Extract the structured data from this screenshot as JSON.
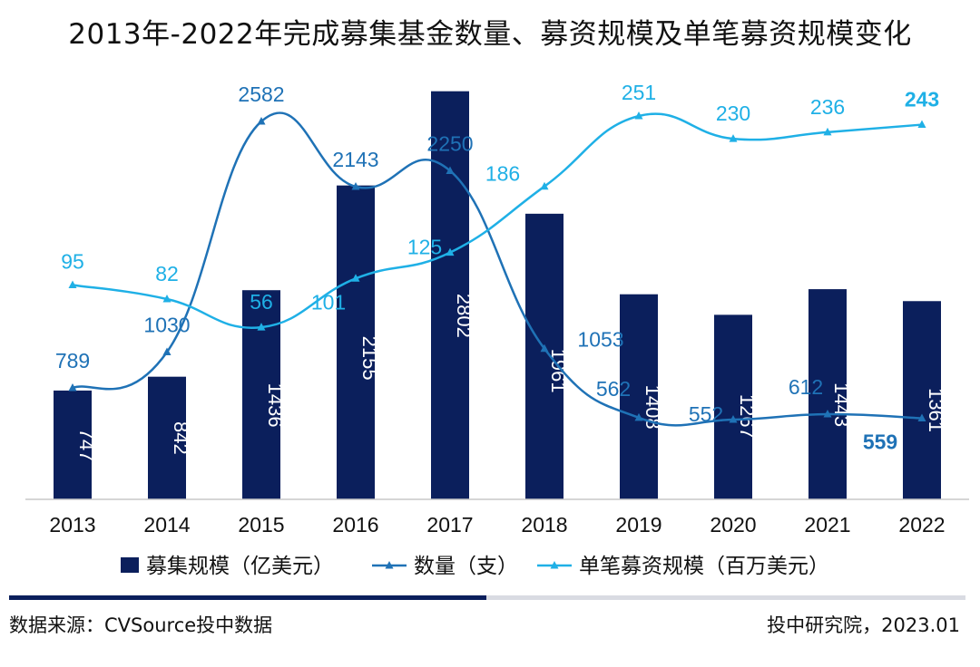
{
  "header": {
    "title": "2013年-2022年完成募集基金数量、募资规模及单笔募资规模变化"
  },
  "footer": {
    "source": "数据来源：CVSource投中数据",
    "credit": "投中研究院，2023.01"
  },
  "colors": {
    "bar": "#0b1f5c",
    "count_line": "#1f72b6",
    "avg_line": "#1fb0e6",
    "axis": "#c8c8c8",
    "rule_light": "#d9dbe2"
  },
  "chart_data": {
    "type": "bar",
    "categories": [
      "2013",
      "2014",
      "2015",
      "2016",
      "2017",
      "2018",
      "2019",
      "2020",
      "2021",
      "2022"
    ],
    "series": [
      {
        "name": "募集规模（亿美元）",
        "type": "bar",
        "values": [
          747,
          842,
          1436,
          2155,
          2802,
          1961,
          1408,
          1267,
          1443,
          1361
        ]
      },
      {
        "name": "数量（支）",
        "type": "line",
        "marker": "triangle",
        "smooth": true,
        "values": [
          789,
          1030,
          2582,
          2143,
          2250,
          1053,
          562,
          552,
          612,
          559
        ]
      },
      {
        "name": "单笔募资规模（百万美元）",
        "type": "line",
        "marker": "triangle",
        "smooth": true,
        "values": [
          95,
          82,
          56,
          101,
          125,
          186,
          251,
          230,
          236,
          243
        ]
      }
    ],
    "axes": {
      "bar_ylim": [
        0,
        2800
      ],
      "count_ylim": [
        0,
        2750
      ],
      "avg_ylim": [
        0,
        300
      ]
    },
    "legend": "bottom",
    "grid": false
  }
}
